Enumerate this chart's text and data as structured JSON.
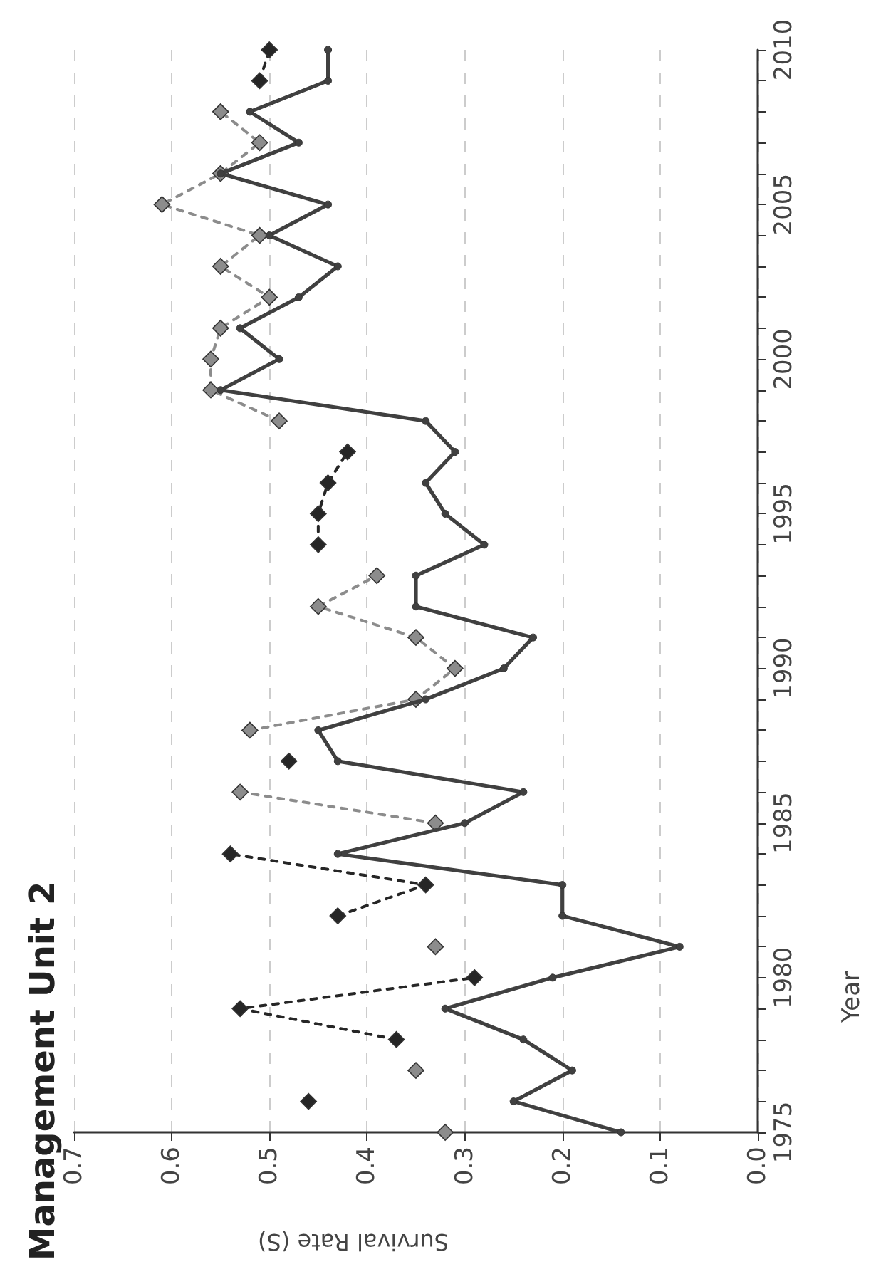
{
  "chart_data": {
    "type": "line",
    "title": "Management Unit 2",
    "xlabel": "Survival Rate (S)",
    "ylabel": "Year",
    "x": [
      1975,
      1976,
      1977,
      1978,
      1979,
      1980,
      1981,
      1982,
      1983,
      1984,
      1985,
      1986,
      1987,
      1988,
      1989,
      1990,
      1991,
      1992,
      1993,
      1994,
      1995,
      1996,
      1997,
      1998,
      1999,
      2000,
      2001,
      2002,
      2003,
      2004,
      2005,
      2006,
      2007,
      2008,
      2009,
      2010
    ],
    "series": [
      {
        "color": "#404040",
        "marker": "circle",
        "line_style": "solid",
        "values": [
          0.14,
          0.25,
          0.19,
          0.24,
          0.32,
          0.21,
          0.08,
          0.2,
          0.2,
          0.43,
          0.3,
          0.24,
          0.43,
          0.45,
          0.34,
          0.26,
          0.23,
          0.35,
          0.35,
          0.28,
          0.32,
          0.34,
          0.31,
          0.34,
          0.55,
          0.49,
          0.53,
          0.47,
          0.43,
          0.5,
          0.44,
          0.55,
          0.47,
          0.52,
          0.44,
          0.44
        ]
      },
      {
        "color": "#8c8c8c",
        "marker": "diamond",
        "line_style": "dashed",
        "values": [
          0.32,
          null,
          0.35,
          null,
          null,
          null,
          0.33,
          null,
          null,
          null,
          0.33,
          0.53,
          null,
          0.52,
          0.35,
          0.31,
          0.35,
          0.45,
          0.39,
          null,
          null,
          null,
          null,
          0.49,
          0.56,
          0.56,
          0.55,
          0.5,
          0.55,
          0.51,
          0.61,
          0.55,
          0.51,
          0.55,
          null,
          null
        ]
      },
      {
        "color": "#262626",
        "marker": "diamond",
        "line_style": "dashed",
        "values": [
          null,
          0.46,
          null,
          0.37,
          0.53,
          0.29,
          null,
          0.43,
          0.34,
          0.54,
          null,
          null,
          0.48,
          null,
          null,
          null,
          null,
          null,
          null,
          0.45,
          0.45,
          0.44,
          0.42,
          null,
          null,
          null,
          null,
          null,
          null,
          null,
          null,
          null,
          null,
          null,
          0.51,
          0.5
        ]
      }
    ],
    "orientation": "horizontal",
    "xlim": [
      0.7,
      0
    ],
    "xticks": [
      {
        "value": 0,
        "label": "0.0"
      },
      0.1,
      0.2,
      0.3,
      0.4,
      0.5,
      0.6,
      0.7
    ],
    "ylim": [
      1975,
      2010
    ],
    "yticks": [
      1975,
      {
        "value": 1976,
        "label": null
      },
      {
        "value": 1977,
        "label": null
      },
      {
        "value": 1978,
        "label": null
      },
      {
        "value": 1979,
        "label": null
      },
      1980,
      {
        "value": 1981,
        "label": null
      },
      {
        "value": 1982,
        "label": null
      },
      {
        "value": 1983,
        "label": null
      },
      {
        "value": 1984,
        "label": null
      },
      1985,
      {
        "value": 1986,
        "label": null
      },
      {
        "value": 1987,
        "label": null
      },
      {
        "value": 1988,
        "label": null
      },
      {
        "value": 1989,
        "label": null
      },
      1990,
      {
        "value": 1991,
        "label": null
      },
      {
        "value": 1992,
        "label": null
      },
      {
        "value": 1993,
        "label": null
      },
      {
        "value": 1994,
        "label": null
      },
      1995,
      {
        "value": 1996,
        "label": null
      },
      {
        "value": 1997,
        "label": null
      },
      {
        "value": 1998,
        "label": null
      },
      {
        "value": 1999,
        "label": null
      },
      2000,
      {
        "value": 2001,
        "label": null
      },
      {
        "value": 2002,
        "label": null
      },
      {
        "value": 2003,
        "label": null
      },
      {
        "value": 2004,
        "label": null
      },
      2005,
      {
        "value": 2006,
        "label": null
      },
      {
        "value": 2007,
        "label": null
      },
      {
        "value": 2008,
        "label": null
      },
      {
        "value": 2009,
        "label": null
      },
      2010
    ],
    "grid": "x"
  }
}
